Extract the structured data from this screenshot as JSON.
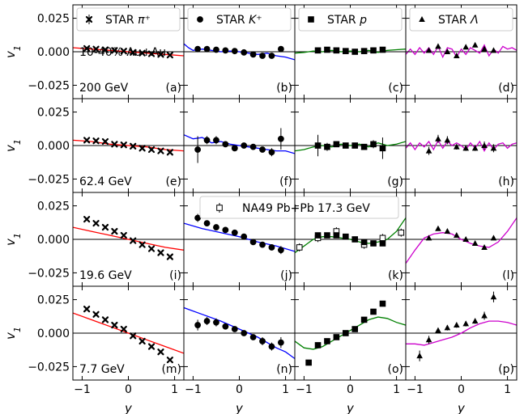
{
  "chart_data": {
    "type": "scatter",
    "xlabel": "y",
    "ylabel": "v1",
    "xlim": [
      -1.2,
      1.2
    ],
    "ylim": [
      -0.035,
      0.035
    ],
    "x_ticks": [
      -1,
      0,
      1
    ],
    "x_tick_labels": [
      "−1",
      "0",
      "1"
    ],
    "y_ticks": [
      -0.025,
      0.0,
      0.025
    ],
    "y_tick_labels": [
      "−0.025",
      "0.000",
      "0.025"
    ],
    "grid": false,
    "columns": [
      {
        "particle": "STAR π⁺",
        "marker": "cross",
        "model_color": "#ff0000"
      },
      {
        "particle": "STAR K⁺",
        "marker": "circle",
        "model_color": "#0000ff"
      },
      {
        "particle": "STAR p",
        "marker": "square",
        "model_color": "#008000"
      },
      {
        "particle": "STAR Λ",
        "marker": "triangle",
        "model_color": "#cc00cc"
      }
    ],
    "rows": [
      {
        "energy_label": "200 GeV",
        "extra_label": "10-40% Au+Au"
      },
      {
        "energy_label": "62.4 GeV",
        "extra_label": ""
      },
      {
        "energy_label": "19.6 GeV",
        "extra_label": ""
      },
      {
        "energy_label": "7.7 GeV",
        "extra_label": ""
      }
    ],
    "panel_letters": [
      "(a)",
      "(b)",
      "(c)",
      "(d)",
      "(e)",
      "(f)",
      "(g)",
      "(h)",
      "(i)",
      "(j)",
      "(k)",
      "(l)",
      "(m)",
      "(n)",
      "(o)",
      "(p)"
    ],
    "na49_legend": "NA49 Pb+Pb 17.3 GeV",
    "panels": [
      {
        "id": "a",
        "data": {
          "x": [
            -0.9,
            -0.7,
            -0.5,
            -0.3,
            -0.1,
            0.1,
            0.3,
            0.5,
            0.7,
            0.9
          ],
          "y": [
            0.0025,
            0.002,
            0.0015,
            0.001,
            0.0005,
            -0.0005,
            -0.001,
            -0.0015,
            -0.002,
            -0.0025
          ]
        },
        "model": {
          "x": [
            -1.2,
            -0.8,
            -0.4,
            0,
            0.4,
            0.8,
            1.2
          ],
          "y": [
            0.003,
            0.002,
            0.001,
            0,
            -0.001,
            -0.002,
            -0.003
          ]
        }
      },
      {
        "id": "b",
        "data": {
          "x": [
            -0.9,
            -0.7,
            -0.5,
            -0.3,
            -0.1,
            0.1,
            0.3,
            0.5,
            0.7,
            0.9
          ],
          "y": [
            0.002,
            0.002,
            0.0015,
            0.001,
            0.0005,
            -0.0005,
            -0.002,
            -0.003,
            -0.003,
            0.002
          ]
        },
        "model": {
          "x": [
            -1.2,
            -1.1,
            -1.0,
            -0.8,
            -0.6,
            -0.4,
            -0.2,
            0,
            0.2,
            0.4,
            0.6,
            0.8,
            1.0,
            1.2
          ],
          "y": [
            0.006,
            0.003,
            0.001,
            0.002,
            0.001,
            0,
            0.0005,
            0,
            -0.001,
            -0.002,
            -0.001,
            -0.003,
            -0.004,
            -0.006
          ]
        }
      },
      {
        "id": "c",
        "data": {
          "x": [
            -0.7,
            -0.5,
            -0.3,
            -0.1,
            0.1,
            0.3,
            0.5,
            0.7
          ],
          "y": [
            0.001,
            0.0015,
            0.001,
            0.0005,
            0.0,
            0.0005,
            0.001,
            0.0015
          ]
        },
        "model": {
          "x": [
            -1.2,
            -1.0,
            -0.8,
            -0.6,
            -0.4,
            -0.2,
            0,
            0.2,
            0.4,
            0.6,
            0.8,
            1.0,
            1.2
          ],
          "y": [
            -0.001,
            -0.0005,
            0.0005,
            0,
            0.001,
            0,
            0.0005,
            0,
            0.001,
            -0.0005,
            0.001,
            0.0015,
            0.002
          ]
        }
      },
      {
        "id": "d",
        "data": {
          "x": [
            -0.7,
            -0.5,
            -0.3,
            -0.1,
            0.1,
            0.3,
            0.5,
            0.7
          ],
          "y": [
            0.001,
            0.004,
            0.0,
            -0.003,
            0.0035,
            0.005,
            0.002,
            0.001
          ]
        },
        "model": {
          "x": [
            -1.2,
            -1.1,
            -1.0,
            -0.9,
            -0.8,
            -0.7,
            -0.6,
            -0.5,
            -0.4,
            -0.3,
            -0.2,
            -0.1,
            0,
            0.1,
            0.2,
            0.3,
            0.4,
            0.5,
            0.6,
            0.7,
            0.8,
            0.9,
            1.0,
            1.1,
            1.2
          ],
          "y": [
            -0.002,
            0.002,
            -0.002,
            0.003,
            -0.001,
            0.003,
            -0.002,
            0.004,
            -0.004,
            0.003,
            0.002,
            -0.004,
            0.002,
            -0.002,
            0.003,
            0.001,
            -0.001,
            0.005,
            -0.003,
            0.002,
            -0.001,
            0.004,
            0.002,
            0.003,
            0.001
          ]
        }
      },
      {
        "id": "e",
        "data": {
          "x": [
            -0.9,
            -0.7,
            -0.5,
            -0.3,
            -0.1,
            0.1,
            0.3,
            0.5,
            0.7,
            0.9
          ],
          "y": [
            0.004,
            0.0035,
            0.003,
            0.001,
            0.0005,
            -0.0005,
            -0.002,
            -0.003,
            -0.004,
            -0.005
          ]
        },
        "model": {
          "x": [
            -1.2,
            -0.8,
            -0.4,
            0,
            0.4,
            0.8,
            1.2
          ],
          "y": [
            0.004,
            0.003,
            0.001,
            0,
            -0.001,
            -0.003,
            -0.004
          ]
        }
      },
      {
        "id": "f",
        "data": {
          "x": [
            -0.9,
            -0.7,
            -0.5,
            -0.3,
            -0.1,
            0.1,
            0.3,
            0.5,
            0.7,
            0.9
          ],
          "y": [
            -0.003,
            0.004,
            0.004,
            0.001,
            -0.002,
            0.0,
            -0.001,
            -0.003,
            -0.005,
            0.005
          ],
          "err": [
            0.01,
            0.003,
            0.003,
            0.002,
            0.002,
            0.002,
            0.002,
            0.002,
            0.003,
            0.008
          ]
        },
        "model": {
          "x": [
            -1.2,
            -1.0,
            -0.8,
            -0.6,
            -0.4,
            -0.2,
            0,
            0.2,
            0.4,
            0.6,
            0.8,
            1.0,
            1.2
          ],
          "y": [
            0.008,
            0.005,
            0.006,
            0.002,
            0.003,
            0.001,
            0,
            -0.001,
            -0.002,
            -0.003,
            -0.004,
            -0.004,
            -0.006
          ]
        }
      },
      {
        "id": "g",
        "data": {
          "x": [
            -0.7,
            -0.5,
            -0.3,
            -0.1,
            0.1,
            0.3,
            0.5,
            0.7
          ],
          "y": [
            0.0,
            -0.001,
            0.001,
            0.0,
            0.0,
            -0.001,
            0.001,
            -0.002
          ],
          "err": [
            0.008,
            0.003,
            0.002,
            0.002,
            0.002,
            0.002,
            0.003,
            0.008
          ]
        },
        "model": {
          "x": [
            -1.2,
            -1.0,
            -0.8,
            -0.6,
            -0.4,
            -0.2,
            0,
            0.2,
            0.4,
            0.6,
            0.8,
            1.0,
            1.2
          ],
          "y": [
            -0.004,
            -0.003,
            -0.001,
            0,
            -0.001,
            0.001,
            0,
            0.001,
            -0.001,
            0.002,
            0,
            0.001,
            0.003
          ]
        }
      },
      {
        "id": "h",
        "data": {
          "x": [
            -0.7,
            -0.5,
            -0.3,
            -0.1,
            0.1,
            0.3,
            0.5,
            0.7
          ],
          "y": [
            -0.004,
            0.005,
            0.004,
            -0.001,
            -0.002,
            -0.002,
            0.0,
            -0.002
          ],
          "err": [
            0.003,
            0.003,
            0.003,
            0.002,
            0.002,
            0.002,
            0.003,
            0.003
          ]
        },
        "model": {
          "x": [
            -1.2,
            -1.1,
            -1.0,
            -0.9,
            -0.8,
            -0.7,
            -0.6,
            -0.5,
            -0.4,
            -0.3,
            -0.2,
            -0.1,
            0,
            0.1,
            0.2,
            0.3,
            0.4,
            0.5,
            0.6,
            0.7,
            0.8,
            0.9,
            1.0,
            1.1,
            1.2
          ],
          "y": [
            -0.002,
            0.002,
            -0.003,
            0.002,
            -0.001,
            0.003,
            -0.003,
            0.004,
            -0.002,
            0.003,
            0,
            0.002,
            0,
            -0.003,
            0.002,
            -0.002,
            0.003,
            -0.004,
            0.002,
            -0.003,
            0.001,
            0.002,
            -0.002,
            0.001,
            0.002
          ]
        }
      },
      {
        "id": "i",
        "data": {
          "x": [
            -0.9,
            -0.7,
            -0.5,
            -0.3,
            -0.1,
            0.1,
            0.3,
            0.5,
            0.7,
            0.9
          ],
          "y": [
            0.015,
            0.012,
            0.009,
            0.006,
            0.003,
            -0.001,
            -0.004,
            -0.007,
            -0.01,
            -0.013
          ]
        },
        "model": {
          "x": [
            -1.2,
            -0.8,
            -0.4,
            0,
            0.4,
            0.8,
            1.2
          ],
          "y": [
            0.009,
            0.006,
            0.003,
            0,
            -0.003,
            -0.006,
            -0.008
          ]
        }
      },
      {
        "id": "j",
        "data": {
          "x": [
            -0.9,
            -0.7,
            -0.5,
            -0.3,
            -0.1,
            0.1,
            0.3,
            0.5,
            0.7,
            0.9
          ],
          "y": [
            0.016,
            0.012,
            0.009,
            0.007,
            0.005,
            0.002,
            -0.002,
            -0.004,
            -0.006,
            -0.008
          ],
          "err": [
            0.003,
            0.002,
            0.002,
            0.002,
            0.002,
            0.002,
            0.002,
            0.002,
            0.002,
            0.003
          ]
        },
        "model": {
          "x": [
            -1.2,
            -0.8,
            -0.4,
            0,
            0.4,
            0.8,
            1.2
          ],
          "y": [
            0.012,
            0.008,
            0.005,
            0.002,
            -0.002,
            -0.005,
            -0.009
          ]
        }
      },
      {
        "id": "k",
        "data": {
          "x": [
            -0.7,
            -0.5,
            -0.3,
            -0.1,
            0.1,
            0.3,
            0.5,
            0.7
          ],
          "y": [
            0.003,
            0.003,
            0.003,
            0.002,
            0.0,
            -0.002,
            -0.003,
            -0.003
          ]
        },
        "na49": {
          "x": [
            -1.1,
            -0.7,
            -0.3,
            0.3,
            0.7,
            1.1
          ],
          "y": [
            -0.006,
            0.001,
            0.006,
            -0.004,
            0.001,
            0.005
          ]
        },
        "model": {
          "x": [
            -1.2,
            -1.0,
            -0.8,
            -0.6,
            -0.4,
            -0.2,
            0,
            0.2,
            0.4,
            0.6,
            0.8,
            1.0,
            1.2
          ],
          "y": [
            -0.01,
            -0.005,
            0.0,
            0.002,
            0.002,
            0.001,
            0.0,
            -0.002,
            -0.003,
            -0.002,
            0.0,
            0.006,
            0.016
          ]
        }
      },
      {
        "id": "l",
        "data": {
          "x": [
            -0.7,
            -0.5,
            -0.3,
            -0.1,
            0.1,
            0.3,
            0.5,
            0.7
          ],
          "y": [
            0.001,
            0.008,
            0.006,
            0.003,
            0.0,
            -0.003,
            -0.006,
            0.001
          ]
        },
        "model": {
          "x": [
            -1.2,
            -1.0,
            -0.8,
            -0.6,
            -0.4,
            -0.2,
            0,
            0.2,
            0.4,
            0.6,
            0.8,
            1.0,
            1.2
          ],
          "y": [
            -0.018,
            -0.008,
            0.001,
            0.004,
            0.005,
            0.004,
            0.0,
            -0.003,
            -0.005,
            -0.006,
            -0.002,
            0.006,
            0.016
          ]
        }
      },
      {
        "id": "m",
        "data": {
          "x": [
            -0.9,
            -0.7,
            -0.5,
            -0.3,
            -0.1,
            0.1,
            0.3,
            0.5,
            0.7,
            0.9
          ],
          "y": [
            0.018,
            0.014,
            0.01,
            0.006,
            0.003,
            -0.002,
            -0.006,
            -0.01,
            -0.014,
            -0.02
          ]
        },
        "model": {
          "x": [
            -1.2,
            -0.8,
            -0.4,
            0,
            0.4,
            0.8,
            1.2
          ],
          "y": [
            0.015,
            0.01,
            0.005,
            0,
            -0.005,
            -0.01,
            -0.015
          ]
        }
      },
      {
        "id": "n",
        "data": {
          "x": [
            -0.9,
            -0.7,
            -0.5,
            -0.3,
            -0.1,
            0.1,
            0.3,
            0.5,
            0.7,
            0.9
          ],
          "y": [
            0.006,
            0.009,
            0.008,
            0.005,
            0.003,
            0.0,
            -0.003,
            -0.006,
            -0.01,
            -0.007
          ],
          "err": [
            0.004,
            0.003,
            0.003,
            0.002,
            0.002,
            0.002,
            0.002,
            0.003,
            0.003,
            0.004
          ]
        },
        "model": {
          "x": [
            -1.2,
            -0.8,
            -0.4,
            0,
            0.4,
            0.8,
            1.0,
            1.2
          ],
          "y": [
            0.019,
            0.014,
            0.009,
            0.003,
            -0.003,
            -0.011,
            -0.014,
            -0.019
          ]
        }
      },
      {
        "id": "o",
        "data": {
          "x": [
            -0.9,
            -0.7,
            -0.5,
            -0.3,
            -0.1,
            0.1,
            0.3,
            0.5,
            0.7
          ],
          "y": [
            -0.022,
            -0.009,
            -0.006,
            -0.003,
            0.0,
            0.003,
            0.01,
            0.016,
            0.022
          ]
        },
        "model": {
          "x": [
            -1.2,
            -1.0,
            -0.8,
            -0.6,
            -0.4,
            -0.2,
            0,
            0.2,
            0.4,
            0.6,
            0.8,
            1.0,
            1.2
          ],
          "y": [
            -0.006,
            -0.011,
            -0.012,
            -0.01,
            -0.006,
            -0.002,
            0.002,
            0.006,
            0.01,
            0.012,
            0.011,
            0.008,
            0.006
          ]
        }
      },
      {
        "id": "p",
        "data": {
          "x": [
            -0.9,
            -0.7,
            -0.5,
            -0.3,
            -0.1,
            0.1,
            0.3,
            0.5,
            0.7
          ],
          "y": [
            -0.017,
            -0.005,
            0.002,
            0.004,
            0.006,
            0.007,
            0.009,
            0.013,
            0.027
          ],
          "err": [
            0.004,
            0.003,
            0.002,
            0.002,
            0.002,
            0.002,
            0.002,
            0.003,
            0.004
          ]
        },
        "model": {
          "x": [
            -1.2,
            -1.0,
            -0.8,
            -0.6,
            -0.4,
            -0.2,
            0,
            0.2,
            0.4,
            0.6,
            0.8,
            1.0,
            1.2
          ],
          "y": [
            -0.008,
            -0.008,
            -0.009,
            -0.007,
            -0.005,
            -0.003,
            0.0,
            0.004,
            0.007,
            0.009,
            0.009,
            0.008,
            0.006
          ]
        }
      }
    ]
  }
}
